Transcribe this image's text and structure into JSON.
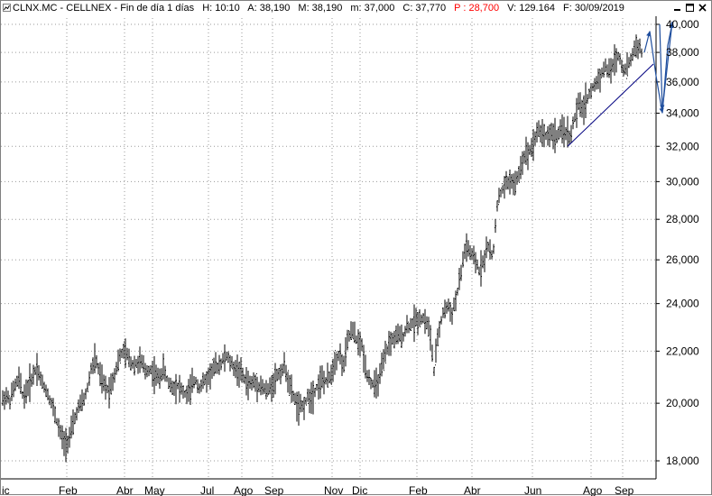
{
  "title_bar": {
    "symbol": "CLNX.MC - CELLNEX - Fin de día 1 días",
    "h": "H: 10:10",
    "a": "A: 38,190",
    "m_upper": "M: 38,190",
    "m_lower": "m: 37,000",
    "c": "C: 37,770",
    "p": "P : 28,700",
    "v": "V: 129.164",
    "f": "F: 30/09/2019",
    "p_color": "#ff0000"
  },
  "window_controls": [
    "minimize-icon",
    "maximize-icon",
    "close-icon"
  ],
  "chart_data": {
    "type": "ohlc",
    "y_scale": "log",
    "ylim": [
      17.6,
      40.6
    ],
    "y_ticks": [
      "40,000",
      "38,000",
      "36,000",
      "34,000",
      "32,000",
      "30,000",
      "28,000",
      "26,000",
      "24,000",
      "22,000",
      "20,000",
      "18,000"
    ],
    "y_tick_values": [
      40,
      38,
      36,
      34,
      32,
      30,
      28,
      26,
      24,
      22,
      20,
      18
    ],
    "x_ticks": [
      "ic",
      "Feb",
      "Abr",
      "May",
      "Jul",
      "Ago",
      "Sep",
      "Nov",
      "Dic",
      "Feb",
      "Abr",
      "Jun",
      "Ago",
      "Sep"
    ],
    "x_range": [
      "2017-12",
      "2019-09"
    ],
    "grid": true,
    "price_path": [
      [
        0,
        20.0
      ],
      [
        5,
        20.3
      ],
      [
        10,
        20.1
      ],
      [
        15,
        20.6
      ],
      [
        20,
        20.9
      ],
      [
        25,
        20.2
      ],
      [
        30,
        20.6
      ],
      [
        35,
        21.0
      ],
      [
        40,
        21.4
      ],
      [
        45,
        20.8
      ],
      [
        50,
        20.5
      ],
      [
        55,
        20.1
      ],
      [
        60,
        19.6
      ],
      [
        65,
        19.0
      ],
      [
        70,
        18.6
      ],
      [
        75,
        18.7
      ],
      [
        80,
        19.2
      ],
      [
        85,
        19.8
      ],
      [
        90,
        20.0
      ],
      [
        95,
        20.4
      ],
      [
        100,
        21.3
      ],
      [
        105,
        21.7
      ],
      [
        110,
        21.0
      ],
      [
        115,
        20.6
      ],
      [
        120,
        20.5
      ],
      [
        125,
        21.0
      ],
      [
        130,
        21.6
      ],
      [
        135,
        22.0
      ],
      [
        140,
        21.8
      ],
      [
        145,
        21.5
      ],
      [
        150,
        21.5
      ],
      [
        155,
        21.6
      ],
      [
        160,
        21.2
      ],
      [
        165,
        21.3
      ],
      [
        170,
        21.1
      ],
      [
        175,
        20.9
      ],
      [
        180,
        21.3
      ],
      [
        185,
        20.8
      ],
      [
        190,
        20.6
      ],
      [
        195,
        20.7
      ],
      [
        200,
        20.5
      ],
      [
        205,
        20.3
      ],
      [
        210,
        20.5
      ],
      [
        215,
        20.9
      ],
      [
        220,
        20.6
      ],
      [
        225,
        20.8
      ],
      [
        230,
        21.0
      ],
      [
        235,
        21.3
      ],
      [
        240,
        21.4
      ],
      [
        245,
        21.6
      ],
      [
        250,
        21.8
      ],
      [
        255,
        21.5
      ],
      [
        260,
        21.3
      ],
      [
        265,
        21.2
      ],
      [
        270,
        20.9
      ],
      [
        275,
        20.7
      ],
      [
        280,
        20.8
      ],
      [
        285,
        20.7
      ],
      [
        290,
        20.6
      ],
      [
        295,
        20.4
      ],
      [
        300,
        20.7
      ],
      [
        305,
        21.0
      ],
      [
        310,
        21.2
      ],
      [
        315,
        21.4
      ],
      [
        320,
        20.6
      ],
      [
        325,
        20.2
      ],
      [
        330,
        19.8
      ],
      [
        335,
        19.9
      ],
      [
        340,
        20.2
      ],
      [
        345,
        20.3
      ],
      [
        350,
        20.6
      ],
      [
        355,
        20.9
      ],
      [
        360,
        20.8
      ],
      [
        365,
        21.0
      ],
      [
        370,
        21.6
      ],
      [
        375,
        21.9
      ],
      [
        380,
        21.4
      ],
      [
        385,
        22.6
      ],
      [
        390,
        22.8
      ],
      [
        395,
        22.4
      ],
      [
        400,
        22.2
      ],
      [
        405,
        21.2
      ],
      [
        410,
        20.8
      ],
      [
        415,
        20.6
      ],
      [
        420,
        21.0
      ],
      [
        425,
        21.7
      ],
      [
        430,
        22.3
      ],
      [
        435,
        22.5
      ],
      [
        440,
        22.6
      ],
      [
        445,
        22.6
      ],
      [
        450,
        23.0
      ],
      [
        455,
        23.1
      ],
      [
        460,
        23.3
      ],
      [
        465,
        23.4
      ],
      [
        470,
        23.3
      ],
      [
        475,
        22.9
      ],
      [
        480,
        21.2
      ],
      [
        485,
        22.8
      ],
      [
        490,
        23.6
      ],
      [
        495,
        23.9
      ],
      [
        500,
        23.6
      ],
      [
        505,
        24.3
      ],
      [
        510,
        25.4
      ],
      [
        515,
        26.7
      ],
      [
        520,
        26.3
      ],
      [
        525,
        26.0
      ],
      [
        530,
        25.5
      ],
      [
        535,
        26.0
      ],
      [
        540,
        26.7
      ],
      [
        545,
        26.0
      ],
      [
        550,
        28.8
      ],
      [
        555,
        29.5
      ],
      [
        560,
        29.9
      ],
      [
        565,
        30.1
      ],
      [
        570,
        29.8
      ],
      [
        575,
        30.6
      ],
      [
        580,
        31.5
      ],
      [
        585,
        31.7
      ],
      [
        590,
        32.2
      ],
      [
        595,
        33.0
      ],
      [
        600,
        32.8
      ],
      [
        605,
        32.6
      ],
      [
        610,
        32.8
      ],
      [
        615,
        32.6
      ],
      [
        620,
        32.8
      ],
      [
        625,
        33.0
      ],
      [
        630,
        32.5
      ],
      [
        635,
        33.5
      ],
      [
        640,
        34.5
      ],
      [
        645,
        34.3
      ],
      [
        650,
        35.0
      ],
      [
        655,
        35.5
      ],
      [
        660,
        36.0
      ],
      [
        665,
        36.5
      ],
      [
        670,
        37.0
      ],
      [
        675,
        36.6
      ],
      [
        680,
        37.5
      ],
      [
        685,
        37.8
      ],
      [
        690,
        36.8
      ],
      [
        695,
        37.0
      ],
      [
        700,
        37.9
      ],
      [
        705,
        38.6
      ],
      [
        710,
        38.0
      ]
    ],
    "projection_arrows": [
      [
        [
          713,
          38.0
        ],
        [
          719,
          39.5
        ],
        [
          726,
          36.4
        ],
        [
          733,
          34.0
        ],
        [
          739,
          38.5
        ],
        [
          744,
          40.1
        ]
      ],
      [
        [
          730,
          40.0
        ],
        [
          733,
          34.2
        ]
      ],
      [
        [
          733,
          34.2
        ],
        [
          744,
          40.2
        ]
      ]
    ],
    "trendline": [
      [
        628,
        32.0
      ],
      [
        723,
        37.2
      ]
    ]
  }
}
